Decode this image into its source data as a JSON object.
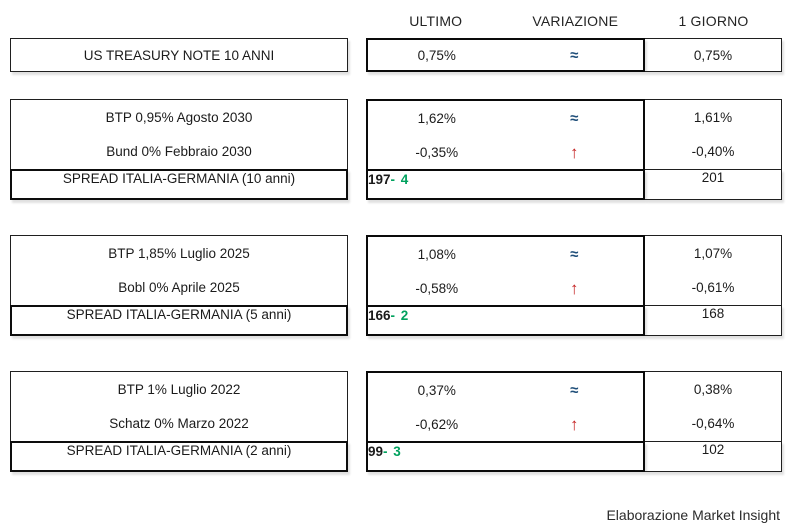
{
  "colors": {
    "approx": "#1f4e79",
    "up": "#c42020",
    "down": "#00a15e",
    "border": "#1a1a1a"
  },
  "chart_data": {
    "type": "table",
    "columns": {
      "ultimo": "ULTIMO",
      "variazione": "VARIAZIONE",
      "giorno": "1 GIORNO"
    },
    "sections": [
      {
        "rows": [
          {
            "label": "US TREASURY NOTE 10 ANNI",
            "ultimo": "0,75%",
            "variazione": "≈",
            "variazione_type": "approx",
            "giorno": "0,75%"
          }
        ]
      },
      {
        "rows": [
          {
            "label": "BTP 0,95% Agosto 2030",
            "ultimo": "1,62%",
            "variazione": "≈",
            "variazione_type": "approx",
            "giorno": "1,61%"
          },
          {
            "label": "Bund 0% Febbraio 2030",
            "ultimo": "-0,35%",
            "variazione": "↑",
            "variazione_type": "up",
            "giorno": "-0,40%"
          }
        ],
        "spread": {
          "label": "SPREAD ITALIA-GERMANIA (10 anni)",
          "ultimo": "197",
          "variazione": "- 4",
          "variazione_type": "down",
          "giorno": "201"
        }
      },
      {
        "rows": [
          {
            "label": "BTP 1,85% Luglio 2025",
            "ultimo": "1,08%",
            "variazione": "≈",
            "variazione_type": "approx",
            "giorno": "1,07%"
          },
          {
            "label": "Bobl 0% Aprile 2025",
            "ultimo": "-0,58%",
            "variazione": "↑",
            "variazione_type": "up",
            "giorno": "-0,61%"
          }
        ],
        "spread": {
          "label": "SPREAD ITALIA-GERMANIA (5 anni)",
          "ultimo": "166",
          "variazione": "- 2",
          "variazione_type": "down",
          "giorno": "168"
        }
      },
      {
        "rows": [
          {
            "label": "BTP 1% Luglio 2022",
            "ultimo": "0,37%",
            "variazione": "≈",
            "variazione_type": "approx",
            "giorno": "0,38%"
          },
          {
            "label": "Schatz 0% Marzo 2022",
            "ultimo": "-0,62%",
            "variazione": "↑",
            "variazione_type": "up",
            "giorno": "-0,64%"
          }
        ],
        "spread": {
          "label": "SPREAD ITALIA-GERMANIA (2 anni)",
          "ultimo": "99",
          "variazione": "- 3",
          "variazione_type": "down",
          "giorno": "102"
        }
      }
    ]
  },
  "footer": {
    "credit": "Elaborazione Market Insight"
  }
}
